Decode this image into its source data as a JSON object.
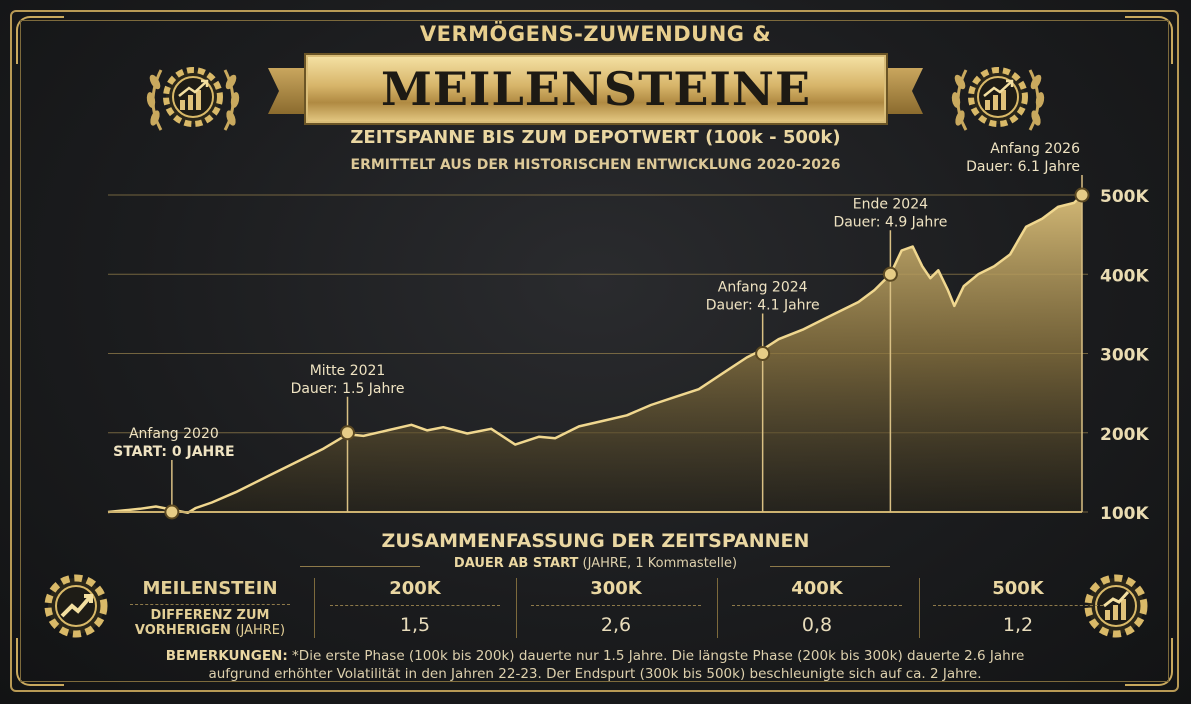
{
  "header": {
    "supertitle": "VERMÖGENS-ZUWENDUNG &",
    "banner": "MEILENSTEINE",
    "subtitle": "ZEITSPANNE BIS ZUM DEPOTWERT (100k - 500k)",
    "subtitle2": "ERMITTELT AUS DER HISTORISCHEN ENTWICKLUNG 2020-2026"
  },
  "icons": {
    "top_left": "gear-chart-laurel-icon",
    "top_right": "gear-chart-laurel-icon",
    "bottom_left": "gear-trend-arrow-icon",
    "bottom_right": "gear-bar-chart-icon"
  },
  "colors": {
    "gold": "#d9b968",
    "gold_light": "#f3dfa0",
    "background": "#1b1c1e"
  },
  "chart_data": {
    "type": "area",
    "y_ticks": [
      "100K",
      "200K",
      "300K",
      "400K",
      "500K"
    ],
    "ylim": [
      100000,
      500000
    ],
    "xlim": [
      0,
      6.1
    ],
    "grid": true,
    "series": [
      {
        "x": [
          0,
          0.1,
          0.2,
          0.3,
          0.4,
          0.5,
          0.55,
          0.65,
          0.8,
          1.0,
          1.2,
          1.35,
          1.5,
          1.6,
          1.75,
          1.9,
          2.0,
          2.1,
          2.25,
          2.4,
          2.55,
          2.7,
          2.8,
          2.95,
          3.1,
          3.25,
          3.4,
          3.55,
          3.7,
          3.85,
          4.0,
          4.1,
          4.2,
          4.35,
          4.5,
          4.6,
          4.7,
          4.8,
          4.9,
          4.97,
          5.04,
          5.1,
          5.15,
          5.2,
          5.26,
          5.3,
          5.36,
          5.45,
          5.55,
          5.65,
          5.75,
          5.85,
          5.95,
          6.05,
          6.1
        ],
        "values": [
          100000,
          102000,
          104000,
          107000,
          103000,
          99000,
          105000,
          112000,
          125000,
          145000,
          165000,
          180000,
          198000,
          196000,
          203000,
          210000,
          203000,
          207000,
          199000,
          205000,
          185000,
          195000,
          193000,
          208000,
          215000,
          222000,
          235000,
          245000,
          255000,
          275000,
          295000,
          305000,
          318000,
          330000,
          345000,
          355000,
          365000,
          380000,
          400000,
          430000,
          435000,
          410000,
          395000,
          405000,
          380000,
          360000,
          385000,
          400000,
          410000,
          425000,
          460000,
          470000,
          485000,
          490000,
          500000
        ]
      }
    ],
    "milestones": [
      {
        "x": 0.4,
        "y": 100000,
        "label": "Anfang 2020",
        "sublabel": "START: 0 JAHRE"
      },
      {
        "x": 1.5,
        "y": 200000,
        "label": "Mitte 2021",
        "sublabel": "Dauer: 1.5 Jahre"
      },
      {
        "x": 4.1,
        "y": 300000,
        "label": "Anfang 2024",
        "sublabel": "Dauer: 4.1 Jahre"
      },
      {
        "x": 4.9,
        "y": 400000,
        "label": "Ende 2024",
        "sublabel": "Dauer: 4.9 Jahre"
      },
      {
        "x": 6.1,
        "y": 500000,
        "label": "Anfang 2026",
        "sublabel": "Dauer: 6.1 Jahre"
      }
    ]
  },
  "summary": {
    "title": "ZUSAMMENFASSUNG DER ZEITSPANNEN",
    "sub_bold": "DAUER AB START",
    "sub_rest": "(JAHRE, 1 Kommastelle)",
    "row1_label": "MEILENSTEIN",
    "row2_label_bold": "DIFFERENZ ZUM VORHERIGEN",
    "row2_label_light": "(JAHRE)",
    "columns": [
      {
        "milestone": "200K",
        "diff": "1,5"
      },
      {
        "milestone": "300K",
        "diff": "2,6"
      },
      {
        "milestone": "400K",
        "diff": "0,8"
      },
      {
        "milestone": "500K",
        "diff": "1,2"
      }
    ],
    "remarks_bold": "BEMERKUNGEN:",
    "remarks_line1": "*Die erste Phase (100k bis 200k) dauerte nur 1.5 Jahre. Die längste Phase (200k bis 300k) dauerte 2.6 Jahre",
    "remarks_line2": "aufgrund erhöhter Volatilität in den Jahren 22-23. Der Endspurt (300k bis 500k) beschleunigte sich auf ca. 2 Jahre."
  }
}
